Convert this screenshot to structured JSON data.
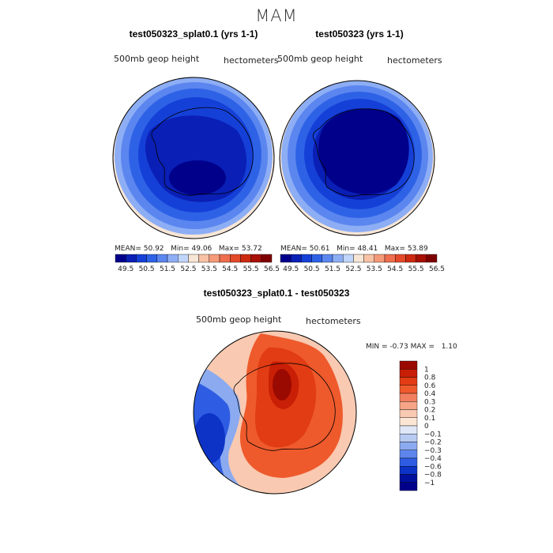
{
  "title": "MAM",
  "panels": [
    {
      "title": "test050323_splat0.1 (yrs 1-1)",
      "field": "500mb geop height",
      "units": "hectometers",
      "stats": {
        "mean_label": "MEAN=",
        "mean": "50.92",
        "min_label": "Min=",
        "min": "49.06",
        "max_label": "Max=",
        "max": "53.72"
      }
    },
    {
      "title": "test050323 (yrs 1-1)",
      "field": "500mb geop height",
      "units": "hectometers",
      "stats": {
        "mean_label": "MEAN=",
        "mean": "50.61",
        "min_label": "Min=",
        "min": "48.41",
        "max_label": "Max=",
        "max": "53.89"
      }
    },
    {
      "title": "test050323_splat0.1 - test050323",
      "field": "500mb geop height",
      "units": "hectometers",
      "stats": {
        "min_label": "MIN =",
        "min": "-0.73",
        "max_label": "MAX =",
        "max": "1.10"
      }
    }
  ],
  "colorbar_abs": {
    "ticks": [
      "49.5",
      "50.5",
      "51.5",
      "52.5",
      "53.5",
      "54.5",
      "55.5",
      "56.5"
    ],
    "colors": [
      "#00008b",
      "#0a1fb5",
      "#1540d8",
      "#2e62e6",
      "#5b86ef",
      "#8daef5",
      "#c0d5fa",
      "#f7e5d6",
      "#f8c2a6",
      "#f59a78",
      "#ee6e4d",
      "#e34a2a",
      "#cc2a10",
      "#a80f05",
      "#7f0000"
    ]
  },
  "colorbar_diff": {
    "labels": [
      "1",
      "0.8",
      "0.6",
      "0.4",
      "0.3",
      "0.2",
      "0.1",
      "0",
      "-0.1",
      "-0.2",
      "-0.3",
      "-0.4",
      "-0.6",
      "-0.8",
      "-1"
    ],
    "colors": [
      "#9b0a00",
      "#c81f06",
      "#e23c14",
      "#ee5a2c",
      "#f28060",
      "#f6a587",
      "#f9c9b1",
      "#fbe6d6",
      "#dfe7f7",
      "#b7caf1",
      "#8baaf0",
      "#5d85ec",
      "#2e5de3",
      "#0c33c6",
      "#00109d",
      "#00008b"
    ]
  },
  "chart_data": [
    {
      "type": "heatmap",
      "title": "test050323_splat0.1 (yrs 1-1)",
      "variable": "500mb geop height",
      "units": "hectometers",
      "mean": 50.92,
      "min": 49.06,
      "max": 53.72,
      "levels": [
        49.5,
        50.5,
        51.5,
        52.5,
        53.5,
        54.5,
        55.5,
        56.5
      ]
    },
    {
      "type": "heatmap",
      "title": "test050323 (yrs 1-1)",
      "variable": "500mb geop height",
      "units": "hectometers",
      "mean": 50.61,
      "min": 48.41,
      "max": 53.89,
      "levels": [
        49.5,
        50.5,
        51.5,
        52.5,
        53.5,
        54.5,
        55.5,
        56.5
      ]
    },
    {
      "type": "heatmap",
      "title": "test050323_splat0.1 - test050323",
      "variable": "500mb geop height",
      "units": "hectometers",
      "min": -0.73,
      "max": 1.1,
      "levels": [
        -1,
        -0.8,
        -0.6,
        -0.4,
        -0.3,
        -0.2,
        -0.1,
        0,
        0.1,
        0.2,
        0.3,
        0.4,
        0.6,
        0.8,
        1
      ]
    }
  ]
}
